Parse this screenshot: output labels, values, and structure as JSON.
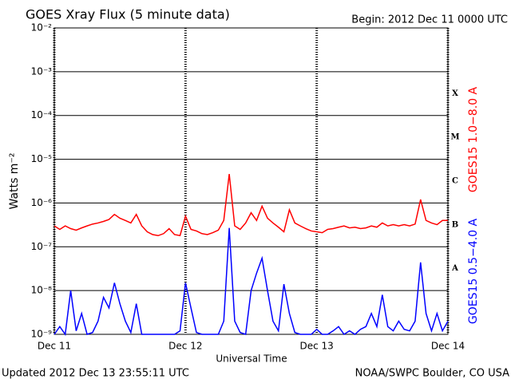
{
  "chart_data": {
    "type": "line",
    "title": "GOES Xray Flux (5 minute data)",
    "subtitle": "Begin:  2012 Dec 11 0000 UTC",
    "xlabel": "Universal Time",
    "ylabel": "Watts m⁻²",
    "footer_left": "Updated 2012 Dec 13 23:55:11 UTC",
    "footer_right": "NOAA/SWPC Boulder, CO USA",
    "class_labels": [
      "X",
      "M",
      "C",
      "B",
      "A"
    ],
    "log_scale": true,
    "grid": true,
    "xlim": [
      0,
      72
    ],
    "xticks": [
      {
        "value": 0,
        "label": "Dec 11"
      },
      {
        "value": 24,
        "label": "Dec 12"
      },
      {
        "value": 48,
        "label": "Dec 13"
      },
      {
        "value": 72,
        "label": "Dec 14"
      }
    ],
    "ylim": [
      1e-09,
      0.01
    ],
    "yticks": [
      {
        "value": 1e-09,
        "label": "10⁻⁹"
      },
      {
        "value": 1e-08,
        "label": "10⁻⁸"
      },
      {
        "value": 1e-07,
        "label": "10⁻⁷"
      },
      {
        "value": 1e-06,
        "label": "10⁻⁶"
      },
      {
        "value": 1e-05,
        "label": "10⁻⁵"
      },
      {
        "value": 0.0001,
        "label": "10⁻⁴"
      },
      {
        "value": 0.001,
        "label": "10⁻³"
      },
      {
        "value": 0.01,
        "label": "10⁻²"
      }
    ],
    "x": [
      0,
      1,
      2,
      3,
      4,
      5,
      6,
      7,
      8,
      9,
      10,
      11,
      12,
      13,
      14,
      15,
      16,
      17,
      18,
      19,
      20,
      21,
      22,
      23,
      24,
      25,
      26,
      27,
      28,
      29,
      30,
      31,
      32,
      33,
      34,
      35,
      36,
      37,
      38,
      39,
      40,
      41,
      42,
      43,
      44,
      45,
      46,
      47,
      48,
      49,
      50,
      51,
      52,
      53,
      54,
      55,
      56,
      57,
      58,
      59,
      60,
      61,
      62,
      63,
      64,
      65,
      66,
      67,
      68,
      69,
      70,
      71,
      72
    ],
    "series": [
      {
        "name": "GOES15 1.0−8.0 A",
        "color": "#ff0000",
        "values": [
          3e-07,
          2.5e-07,
          3e-07,
          2.6e-07,
          2.4e-07,
          2.7e-07,
          3e-07,
          3.3e-07,
          3.5e-07,
          3.8e-07,
          4.2e-07,
          5.5e-07,
          4.5e-07,
          4e-07,
          3.5e-07,
          5.5e-07,
          3e-07,
          2.2e-07,
          1.9e-07,
          1.8e-07,
          2e-07,
          2.6e-07,
          1.9e-07,
          1.8e-07,
          5e-07,
          2.5e-07,
          2.3e-07,
          2e-07,
          1.9e-07,
          2.1e-07,
          2.4e-07,
          4e-07,
          4.6e-06,
          3e-07,
          2.5e-07,
          3.5e-07,
          6e-07,
          4e-07,
          8.5e-07,
          4.5e-07,
          3.5e-07,
          2.8e-07,
          2.2e-07,
          7e-07,
          3.5e-07,
          3e-07,
          2.6e-07,
          2.3e-07,
          2.2e-07,
          2.1e-07,
          2.5e-07,
          2.6e-07,
          2.8e-07,
          3e-07,
          2.7e-07,
          2.8e-07,
          2.6e-07,
          2.7e-07,
          3e-07,
          2.8e-07,
          3.5e-07,
          3e-07,
          3.2e-07,
          3e-07,
          3.2e-07,
          3e-07,
          3.3e-07,
          1.2e-06,
          4e-07,
          3.5e-07,
          3.2e-07,
          4e-07,
          4e-07
        ]
      },
      {
        "name": "GOES15 0.5−4.0 A",
        "color": "#0000ff",
        "values": [
          1e-09,
          1.5e-09,
          1e-09,
          1e-08,
          1.2e-09,
          3e-09,
          1e-09,
          1.1e-09,
          2e-09,
          7e-09,
          4e-09,
          1.5e-08,
          5e-09,
          2e-09,
          1.1e-09,
          5e-09,
          1e-09,
          1e-09,
          1e-09,
          1e-09,
          1e-09,
          1e-09,
          1e-09,
          1.2e-09,
          1.5e-08,
          4e-09,
          1.1e-09,
          1e-09,
          1e-09,
          1e-09,
          1e-09,
          2e-09,
          2.7e-07,
          2e-09,
          1.1e-09,
          1e-09,
          1e-08,
          2.5e-08,
          5.5e-08,
          1e-08,
          2e-09,
          1.2e-09,
          1.4e-08,
          3e-09,
          1.1e-09,
          1e-09,
          1e-09,
          1e-09,
          1.3e-09,
          1e-09,
          1e-09,
          1.2e-09,
          1.5e-09,
          1e-09,
          1.2e-09,
          1e-09,
          1.3e-09,
          1.5e-09,
          3e-09,
          1.5e-09,
          8e-09,
          1.5e-09,
          1.2e-09,
          2e-09,
          1.3e-09,
          1.2e-09,
          2e-09,
          4.4e-08,
          3e-09,
          1.2e-09,
          3e-09,
          1.2e-09,
          2e-09
        ]
      }
    ]
  }
}
